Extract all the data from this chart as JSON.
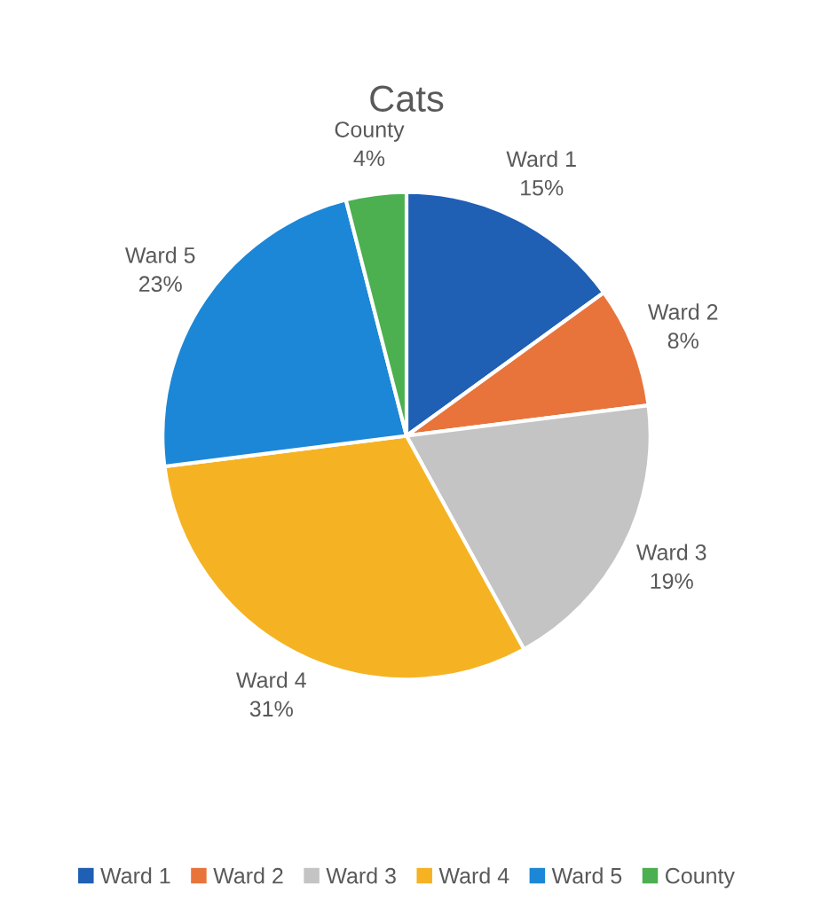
{
  "chart_data": {
    "type": "pie",
    "title": "Cats",
    "categories": [
      "Ward 1",
      "Ward 2",
      "Ward 3",
      "Ward 4",
      "Ward 5",
      "County"
    ],
    "values": [
      15,
      8,
      19,
      31,
      23,
      4
    ],
    "value_labels": [
      "15%",
      "8%",
      "19%",
      "31%",
      "23%",
      "4%"
    ],
    "colors": [
      "#1f5fb4",
      "#e8743b",
      "#c4c4c4",
      "#f5b324",
      "#1c87d6",
      "#4caf50"
    ],
    "legend": "bottom"
  }
}
